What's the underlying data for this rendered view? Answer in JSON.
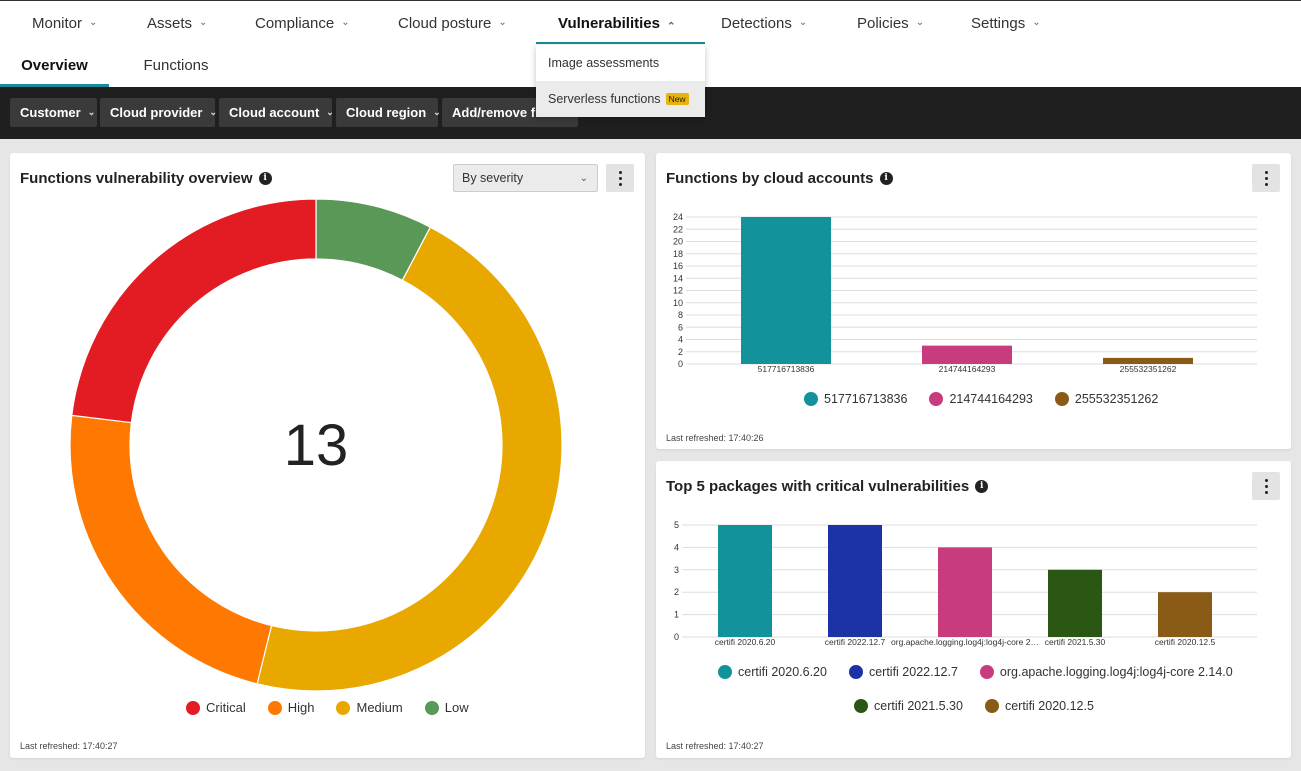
{
  "nav": {
    "items": [
      {
        "label": "Monitor"
      },
      {
        "label": "Assets"
      },
      {
        "label": "Compliance"
      },
      {
        "label": "Cloud posture"
      },
      {
        "label": "Vulnerabilities"
      },
      {
        "label": "Detections"
      },
      {
        "label": "Policies"
      },
      {
        "label": "Settings"
      }
    ],
    "active": "Vulnerabilities"
  },
  "subnav": {
    "tabs": [
      {
        "label": "Overview"
      },
      {
        "label": "Functions"
      }
    ],
    "active": "Overview"
  },
  "dropdown": {
    "items": [
      {
        "label": "Image assessments"
      },
      {
        "label": "Serverless functions",
        "badge": "New"
      }
    ]
  },
  "filters": [
    {
      "label": "Customer"
    },
    {
      "label": "Cloud provider"
    },
    {
      "label": "Cloud account"
    },
    {
      "label": "Cloud region"
    },
    {
      "label": "Add/remove fil"
    }
  ],
  "overview_card": {
    "title": "Functions vulnerability overview",
    "select_value": "By severity",
    "refreshed": "Last refreshed: 17:40:27"
  },
  "accounts_card": {
    "title": "Functions by cloud accounts",
    "refreshed": "Last refreshed: 17:40:26"
  },
  "packages_card": {
    "title": "Top 5 packages with critical vulnerabilities",
    "refreshed": "Last refreshed: 17:40:27"
  },
  "colors": {
    "accent": "#1a8a96"
  },
  "chart_data": [
    {
      "type": "pie",
      "variant": "donut",
      "center_label": "13",
      "categories": [
        "Critical",
        "High",
        "Medium",
        "Low"
      ],
      "values": [
        3,
        3,
        6,
        1
      ],
      "colors": [
        "#e31b23",
        "#ff7900",
        "#e8a800",
        "#5a9858"
      ],
      "legend": "bottom"
    },
    {
      "type": "bar",
      "categories": [
        "517716713836",
        "214744164293",
        "255532351262"
      ],
      "values": [
        24,
        3,
        1
      ],
      "colors": [
        "#14929b",
        "#c83c7e",
        "#8a5a17"
      ],
      "yticks": [
        0,
        2,
        4,
        6,
        8,
        10,
        12,
        14,
        16,
        18,
        20,
        22,
        24
      ],
      "ylim": [
        0,
        24
      ],
      "legend": "bottom"
    },
    {
      "type": "bar",
      "categories": [
        "certifi 2020.6.20",
        "certifi 2022.12.7",
        "org.apache.logging.log4j:log4j-core 2.14.0",
        "certifi 2021.5.30",
        "certifi 2020.12.5"
      ],
      "tick_labels": [
        "certifi 2020.6.20",
        "certifi 2022.12.7",
        "org.apache.logging.log4j:log4j-core 2…",
        "certifi 2021.5.30",
        "certifi 2020.12.5"
      ],
      "values": [
        5,
        5,
        4,
        3,
        2
      ],
      "colors": [
        "#14929b",
        "#1b33a6",
        "#c83c7e",
        "#2b5714",
        "#8a5a17"
      ],
      "yticks": [
        0,
        1,
        2,
        3,
        4,
        5
      ],
      "ylim": [
        0,
        5
      ],
      "legend": "bottom"
    }
  ]
}
